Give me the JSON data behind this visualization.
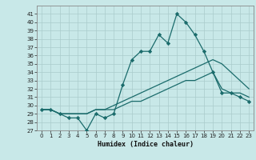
{
  "xlabel": "Humidex (Indice chaleur)",
  "background_color": "#c8e8e8",
  "grid_color": "#aacccc",
  "line_color": "#1a6b6b",
  "ylim": [
    27,
    42
  ],
  "xlim": [
    -0.5,
    23.5
  ],
  "yticks": [
    27,
    28,
    29,
    30,
    31,
    32,
    33,
    34,
    35,
    36,
    37,
    38,
    39,
    40,
    41
  ],
  "xticks": [
    0,
    1,
    2,
    3,
    4,
    5,
    6,
    7,
    8,
    9,
    10,
    11,
    12,
    13,
    14,
    15,
    16,
    17,
    18,
    19,
    20,
    21,
    22,
    23
  ],
  "series1_x": [
    0,
    1,
    2,
    3,
    4,
    5,
    6,
    7,
    8,
    9,
    10,
    11,
    12,
    13,
    14,
    15,
    16,
    17,
    18,
    19,
    20,
    21,
    22,
    23
  ],
  "series1_y": [
    29.5,
    29.5,
    29.0,
    28.5,
    28.5,
    27.0,
    29.0,
    28.5,
    29.0,
    32.5,
    35.5,
    36.5,
    36.5,
    38.5,
    37.5,
    41.0,
    40.0,
    38.5,
    36.5,
    34.0,
    31.5,
    31.5,
    31.0,
    30.5
  ],
  "series2_x": [
    0,
    1,
    2,
    3,
    4,
    5,
    6,
    7,
    8,
    9,
    10,
    11,
    12,
    13,
    14,
    15,
    16,
    17,
    18,
    19,
    20,
    21,
    22,
    23
  ],
  "series2_y": [
    29.5,
    29.5,
    29.0,
    29.0,
    29.0,
    29.0,
    29.5,
    29.5,
    30.0,
    30.5,
    31.0,
    31.5,
    32.0,
    32.5,
    33.0,
    33.5,
    34.0,
    34.5,
    35.0,
    35.5,
    35.0,
    34.0,
    33.0,
    32.0
  ],
  "series3_x": [
    0,
    1,
    2,
    3,
    4,
    5,
    6,
    7,
    8,
    9,
    10,
    11,
    12,
    13,
    14,
    15,
    16,
    17,
    18,
    19,
    20,
    21,
    22,
    23
  ],
  "series3_y": [
    29.5,
    29.5,
    29.0,
    29.0,
    29.0,
    29.0,
    29.5,
    29.5,
    29.5,
    30.0,
    30.5,
    30.5,
    31.0,
    31.5,
    32.0,
    32.5,
    33.0,
    33.0,
    33.5,
    34.0,
    32.0,
    31.5,
    31.5,
    31.0
  ],
  "tick_fontsize": 5,
  "xlabel_fontsize": 6
}
